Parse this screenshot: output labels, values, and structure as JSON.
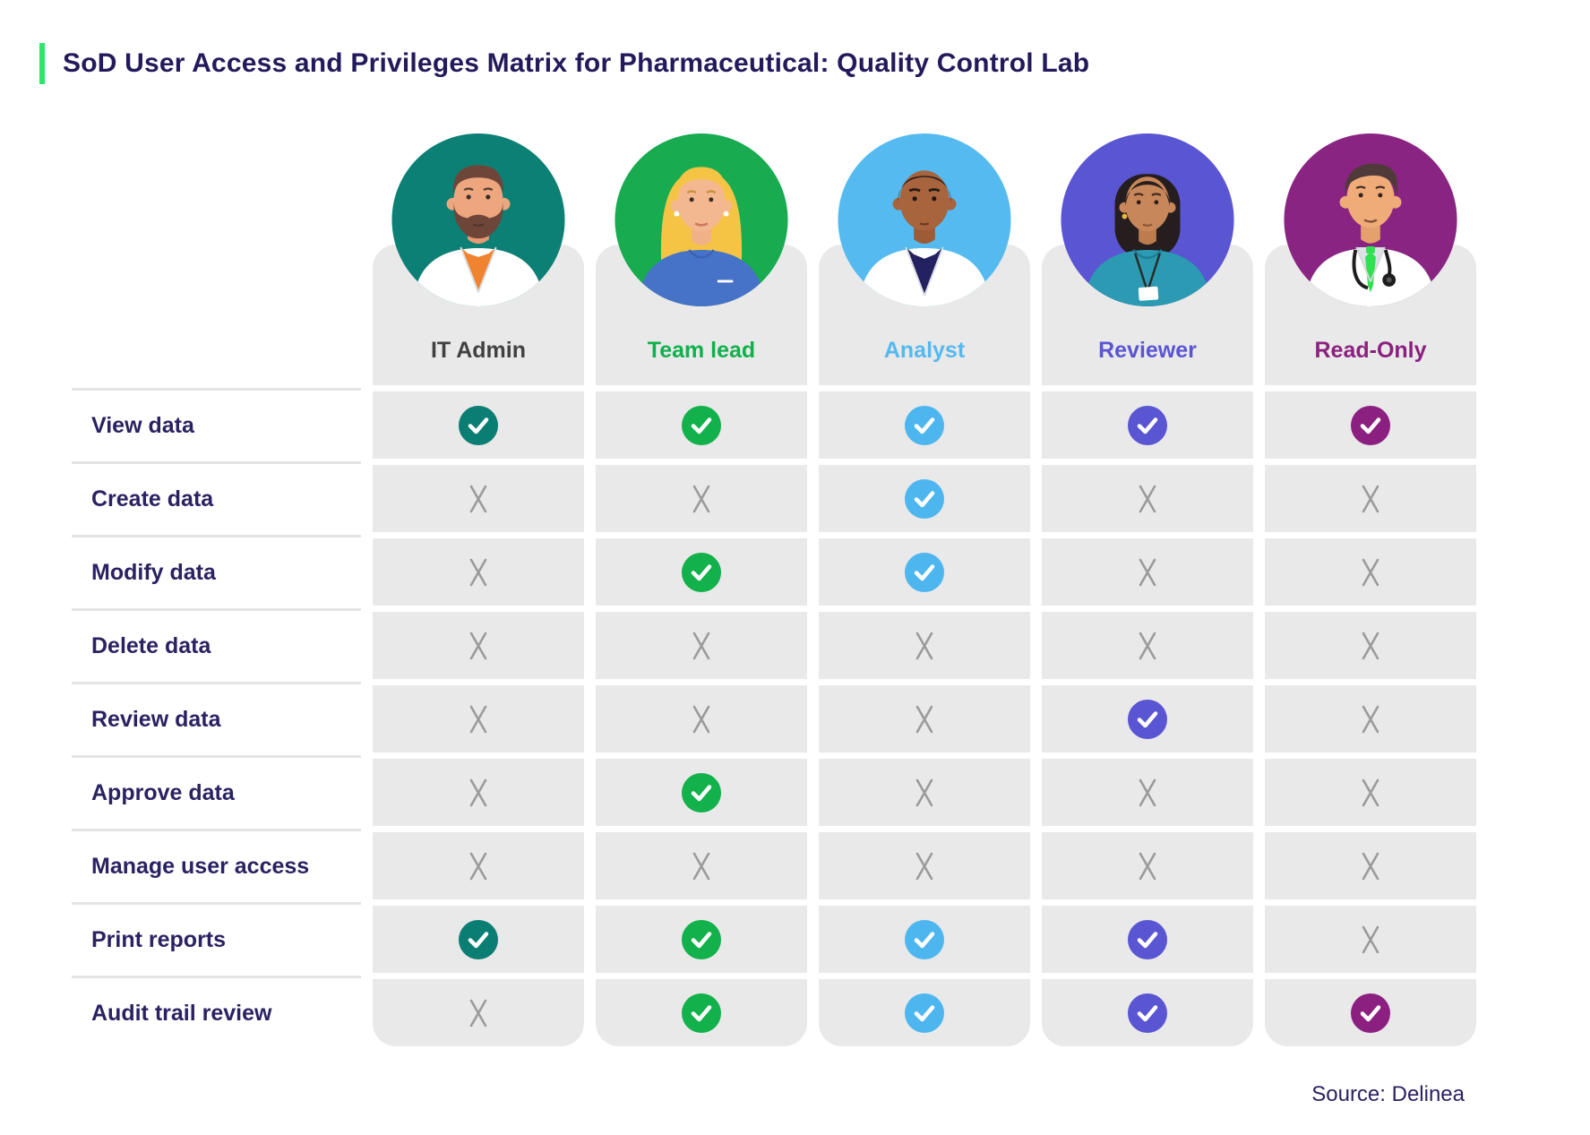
{
  "page": {
    "title": "SoD User Access and Privileges Matrix for Pharmaceutical: Quality Control Lab",
    "source": "Source: Delinea"
  },
  "colors": {
    "accent_bar": "#2de66a",
    "title_text": "#221a5a",
    "row_label_text": "#2a2262",
    "cell_background": "#e9e9e9",
    "row_divider": "#e4e4e4",
    "x_mark": "#9b9b9b"
  },
  "roles": [
    {
      "id": "it-admin",
      "label": "IT Admin",
      "label_color": "#414141",
      "circle_color": "#0d8076",
      "check_color": "#0b7e73",
      "avatar": "bearded-man-lab-coat"
    },
    {
      "id": "team-lead",
      "label": "Team lead",
      "label_color": "#10b04c",
      "circle_color": "#18ab50",
      "check_color": "#12b14b",
      "avatar": "blonde-woman-blue-top"
    },
    {
      "id": "analyst",
      "label": "Analyst",
      "label_color": "#55b9f0",
      "circle_color": "#55baf0",
      "check_color": "#4eb6ef",
      "avatar": "man-lab-coat-navy-shirt"
    },
    {
      "id": "reviewer",
      "label": "Reviewer",
      "label_color": "#5b55d3",
      "circle_color": "#5a55d2",
      "check_color": "#5a55d2",
      "avatar": "woman-bob-scrubs-badge"
    },
    {
      "id": "read-only",
      "label": "Read-Only",
      "label_color": "#8c2080",
      "circle_color": "#8a2483",
      "check_color": "#8c2080",
      "avatar": "doctor-stethoscope-green-tie"
    }
  ],
  "permissions": [
    {
      "id": "view-data",
      "label": "View data",
      "access": [
        true,
        true,
        true,
        true,
        true
      ]
    },
    {
      "id": "create-data",
      "label": "Create data",
      "access": [
        false,
        false,
        true,
        false,
        false
      ]
    },
    {
      "id": "modify-data",
      "label": "Modify data",
      "access": [
        false,
        true,
        true,
        false,
        false
      ]
    },
    {
      "id": "delete-data",
      "label": "Delete data",
      "access": [
        false,
        false,
        false,
        false,
        false
      ]
    },
    {
      "id": "review-data",
      "label": "Review data",
      "access": [
        false,
        false,
        false,
        true,
        false
      ]
    },
    {
      "id": "approve-data",
      "label": "Approve data",
      "access": [
        false,
        true,
        false,
        false,
        false
      ]
    },
    {
      "id": "manage-user-access",
      "label": "Manage user access",
      "access": [
        false,
        false,
        false,
        false,
        false
      ]
    },
    {
      "id": "print-reports",
      "label": "Print reports",
      "access": [
        true,
        true,
        true,
        true,
        false
      ]
    },
    {
      "id": "audit-trail-review",
      "label": "Audit trail review",
      "access": [
        false,
        true,
        true,
        true,
        true
      ]
    }
  ]
}
